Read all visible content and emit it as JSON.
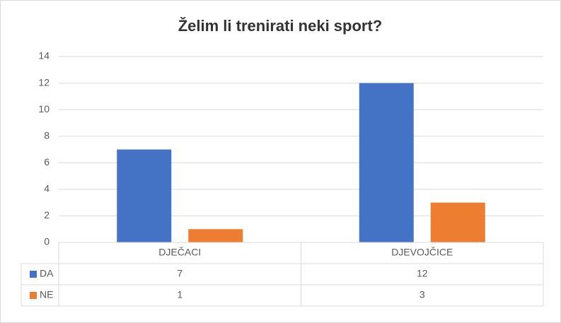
{
  "chart_data": {
    "type": "bar",
    "title": "Želim li trenirati neki sport?",
    "categories": [
      "DJEČACI",
      "DJEVOJČICE"
    ],
    "series": [
      {
        "name": "DA",
        "color": "#4472c4",
        "values": [
          7,
          12
        ]
      },
      {
        "name": "NE",
        "color": "#ed7d31",
        "values": [
          1,
          3
        ]
      }
    ],
    "ylim": [
      0,
      14
    ],
    "yticks": [
      0,
      2,
      4,
      6,
      8,
      10,
      12,
      14
    ],
    "grid": true,
    "data_table": true
  }
}
